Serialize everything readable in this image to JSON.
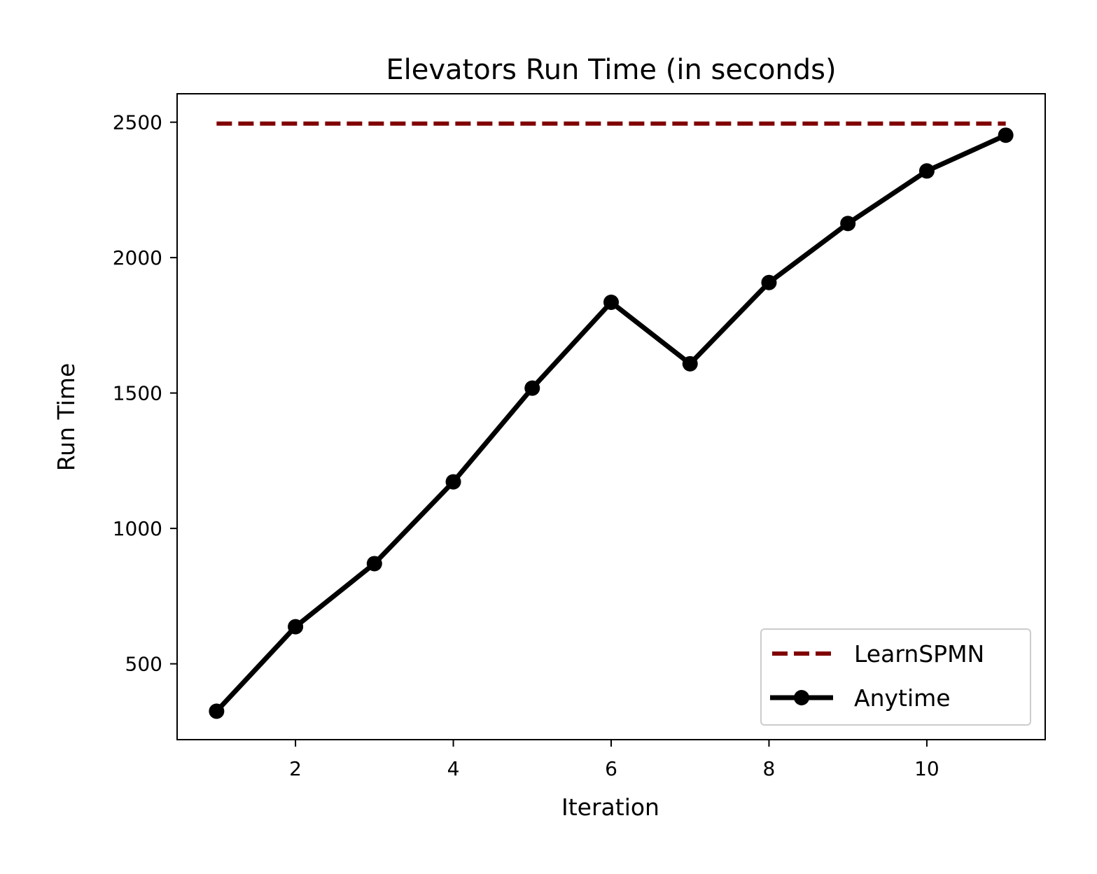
{
  "chart_data": {
    "type": "line",
    "title": "Elevators Run Time (in seconds)",
    "xlabel": "Iteration",
    "ylabel": "Run Time",
    "xlim": [
      0.5,
      11.5
    ],
    "ylim": [
      220,
      2605
    ],
    "xticks": [
      2,
      4,
      6,
      8,
      10
    ],
    "yticks": [
      500,
      1000,
      1500,
      2000,
      2500
    ],
    "grid": false,
    "legend_position": "lower right",
    "series": [
      {
        "name": "LearnSPMN",
        "style": "dashed",
        "color": "#800000",
        "x": [
          1,
          11
        ],
        "y": [
          2495,
          2495
        ]
      },
      {
        "name": "Anytime",
        "style": "solid",
        "marker": "circle",
        "color": "#000000",
        "x": [
          1,
          2,
          3,
          4,
          5,
          6,
          7,
          8,
          9,
          10,
          11
        ],
        "y": [
          325,
          637,
          870,
          1172,
          1518,
          1835,
          1608,
          1908,
          2126,
          2320,
          2452
        ]
      }
    ]
  }
}
